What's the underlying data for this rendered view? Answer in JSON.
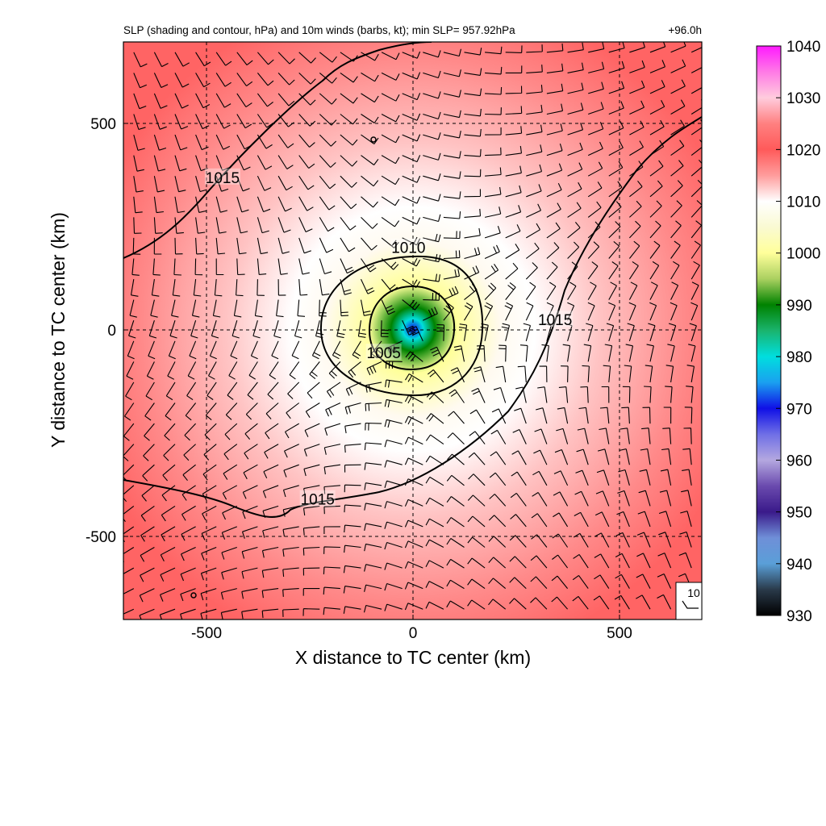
{
  "chart_data": {
    "type": "heatmap",
    "title": "SLP (shading and contour, hPa) and 10m winds (barbs, kt); min SLP= 957.92hPa",
    "time_label": "+96.0h",
    "xlabel": "X distance to TC center (km)",
    "ylabel": "Y distance to TC center (km)",
    "xlim": [
      -700,
      700
    ],
    "ylim": [
      -700,
      700
    ],
    "x_ticks": [
      -500,
      0,
      500
    ],
    "y_ticks": [
      500,
      0,
      -500
    ],
    "x_tick_labels": [
      "-500",
      "0",
      "500"
    ],
    "y_tick_labels": [
      "500",
      "0",
      "-500"
    ],
    "grid": "dashed",
    "min_slp": 957.92,
    "colorbar": {
      "min": 930,
      "max": 1040,
      "tick_values": [
        1040,
        1030,
        1020,
        1010,
        1000,
        990,
        980,
        970,
        960,
        950,
        940,
        930
      ],
      "tick_labels": [
        "1040",
        "1030",
        "1020",
        "1010",
        "1000",
        "990",
        "980",
        "970",
        "960",
        "950",
        "940",
        "930"
      ],
      "colors": [
        {
          "v": 930,
          "c": "#000000"
        },
        {
          "v": 935,
          "c": "#2a3a4a"
        },
        {
          "v": 940,
          "c": "#5a9fd8"
        },
        {
          "v": 945,
          "c": "#6f8fd8"
        },
        {
          "v": 950,
          "c": "#3a1a8a"
        },
        {
          "v": 955,
          "c": "#6a4aae"
        },
        {
          "v": 960,
          "c": "#b4a8e0"
        },
        {
          "v": 965,
          "c": "#6f6fe6"
        },
        {
          "v": 970,
          "c": "#1010e6"
        },
        {
          "v": 975,
          "c": "#1aa0f0"
        },
        {
          "v": 980,
          "c": "#00dede"
        },
        {
          "v": 985,
          "c": "#1ab46e"
        },
        {
          "v": 990,
          "c": "#008200"
        },
        {
          "v": 995,
          "c": "#aad060"
        },
        {
          "v": 1000,
          "c": "#ffff9a"
        },
        {
          "v": 1005,
          "c": "#fafad2"
        },
        {
          "v": 1010,
          "c": "#ffffff"
        },
        {
          "v": 1015,
          "c": "#ff9c9c"
        },
        {
          "v": 1020,
          "c": "#ff5a5a"
        },
        {
          "v": 1025,
          "c": "#ff8080"
        },
        {
          "v": 1030,
          "c": "#ffccdd"
        },
        {
          "v": 1035,
          "c": "#ff7ae6"
        },
        {
          "v": 1040,
          "c": "#ff1aff"
        }
      ]
    },
    "contours": [
      {
        "level": 1015,
        "label": "1015"
      },
      {
        "level": 1010,
        "label": "1010"
      },
      {
        "level": 1005,
        "label": "1005"
      }
    ],
    "contour_label_positions": [
      {
        "label": "1015",
        "x": -460,
        "y": 370
      },
      {
        "label": "1015",
        "x": -230,
        "y": -410
      },
      {
        "label": "1015",
        "x": 345,
        "y": 25
      },
      {
        "label": "1010",
        "x": -10,
        "y": 200
      },
      {
        "label": "1005",
        "x": -70,
        "y": -55
      }
    ],
    "wind_barb_reference": {
      "label": "10",
      "speed": 10,
      "units": "kt"
    }
  }
}
